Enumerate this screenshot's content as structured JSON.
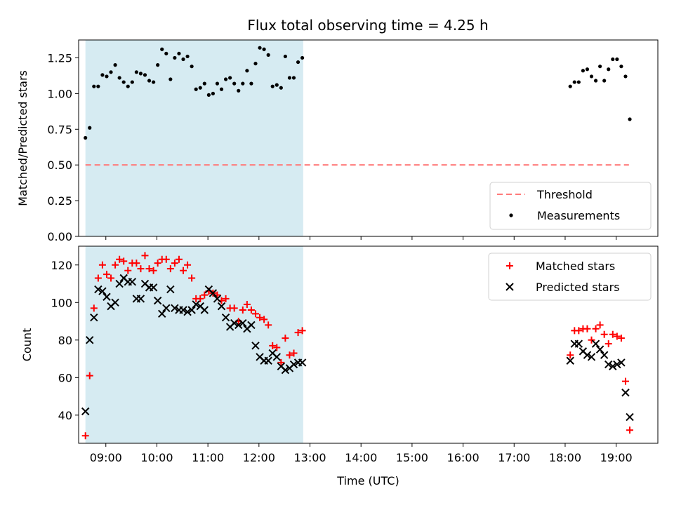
{
  "chart_data": [
    {
      "type": "scatter",
      "title": "Flux total observing time = 4.25 h",
      "ylabel": "Matched/Predicted stars",
      "xlim": [
        "08:28",
        "19:49"
      ],
      "ylim": [
        0,
        1.375
      ],
      "yticks": [
        "0.00",
        "0.25",
        "0.50",
        "0.75",
        "1.00",
        "1.25"
      ],
      "legend_position": "lower-right",
      "shaded_span": {
        "start": "08:36",
        "end": "12:52",
        "color": "#add8e6"
      },
      "threshold": {
        "name": "Threshold",
        "value": 0.5,
        "x": [
          "08:36",
          "19:15"
        ],
        "color": "#ff7a7a",
        "style": "dashed"
      },
      "series": [
        {
          "name": "Measurements",
          "color": "#000000",
          "marker": "dot",
          "points": [
            [
              "08:36",
              0.69
            ],
            [
              "08:41",
              0.76
            ],
            [
              "08:46",
              1.05
            ],
            [
              "08:51",
              1.05
            ],
            [
              "08:56",
              1.13
            ],
            [
              "09:01",
              1.12
            ],
            [
              "09:06",
              1.15
            ],
            [
              "09:11",
              1.2
            ],
            [
              "09:16",
              1.11
            ],
            [
              "09:21",
              1.08
            ],
            [
              "09:26",
              1.05
            ],
            [
              "09:31",
              1.08
            ],
            [
              "09:36",
              1.15
            ],
            [
              "09:41",
              1.14
            ],
            [
              "09:46",
              1.13
            ],
            [
              "09:51",
              1.09
            ],
            [
              "09:56",
              1.08
            ],
            [
              "10:01",
              1.2
            ],
            [
              "10:06",
              1.31
            ],
            [
              "10:11",
              1.28
            ],
            [
              "10:16",
              1.1
            ],
            [
              "10:21",
              1.25
            ],
            [
              "10:26",
              1.28
            ],
            [
              "10:31",
              1.24
            ],
            [
              "10:36",
              1.26
            ],
            [
              "10:41",
              1.19
            ],
            [
              "10:46",
              1.03
            ],
            [
              "10:51",
              1.04
            ],
            [
              "10:56",
              1.07
            ],
            [
              "11:01",
              0.99
            ],
            [
              "11:06",
              1.0
            ],
            [
              "11:11",
              1.07
            ],
            [
              "11:16",
              1.03
            ],
            [
              "11:21",
              1.1
            ],
            [
              "11:26",
              1.11
            ],
            [
              "11:31",
              1.07
            ],
            [
              "11:36",
              1.02
            ],
            [
              "11:41",
              1.07
            ],
            [
              "11:46",
              1.16
            ],
            [
              "11:51",
              1.07
            ],
            [
              "11:56",
              1.21
            ],
            [
              "12:01",
              1.32
            ],
            [
              "12:06",
              1.31
            ],
            [
              "12:11",
              1.27
            ],
            [
              "12:16",
              1.05
            ],
            [
              "12:21",
              1.06
            ],
            [
              "12:26",
              1.04
            ],
            [
              "12:31",
              1.26
            ],
            [
              "12:36",
              1.11
            ],
            [
              "12:41",
              1.11
            ],
            [
              "12:46",
              1.22
            ],
            [
              "12:51",
              1.25
            ],
            [
              "18:06",
              1.05
            ],
            [
              "18:11",
              1.08
            ],
            [
              "18:16",
              1.08
            ],
            [
              "18:21",
              1.16
            ],
            [
              "18:26",
              1.17
            ],
            [
              "18:31",
              1.12
            ],
            [
              "18:36",
              1.09
            ],
            [
              "18:41",
              1.19
            ],
            [
              "18:46",
              1.09
            ],
            [
              "18:51",
              1.17
            ],
            [
              "18:56",
              1.24
            ],
            [
              "19:01",
              1.24
            ],
            [
              "19:06",
              1.19
            ],
            [
              "19:11",
              1.12
            ],
            [
              "19:16",
              0.82
            ]
          ]
        }
      ]
    },
    {
      "type": "scatter",
      "xlabel": "Time (UTC)",
      "ylabel": "Count",
      "xlim": [
        "08:28",
        "19:49"
      ],
      "ylim": [
        25,
        130
      ],
      "yticks": [
        "40",
        "60",
        "80",
        "100",
        "120"
      ],
      "xticks": [
        "09:00",
        "10:00",
        "11:00",
        "12:00",
        "13:00",
        "14:00",
        "15:00",
        "16:00",
        "17:00",
        "18:00",
        "19:00"
      ],
      "legend_position": "top-right",
      "shaded_span": {
        "start": "08:36",
        "end": "12:52",
        "color": "#add8e6"
      },
      "series": [
        {
          "name": "Matched stars",
          "color": "#ff0000",
          "marker": "plus",
          "points": [
            [
              "08:36",
              29
            ],
            [
              "08:41",
              61
            ],
            [
              "08:46",
              97
            ],
            [
              "08:51",
              113
            ],
            [
              "08:56",
              120
            ],
            [
              "09:01",
              115
            ],
            [
              "09:06",
              113
            ],
            [
              "09:11",
              120
            ],
            [
              "09:16",
              123
            ],
            [
              "09:21",
              122
            ],
            [
              "09:26",
              117
            ],
            [
              "09:31",
              121
            ],
            [
              "09:36",
              121
            ],
            [
              "09:41",
              118
            ],
            [
              "09:46",
              125
            ],
            [
              "09:51",
              118
            ],
            [
              "09:56",
              117
            ],
            [
              "10:01",
              121
            ],
            [
              "10:06",
              123
            ],
            [
              "10:11",
              123
            ],
            [
              "10:16",
              118
            ],
            [
              "10:21",
              121
            ],
            [
              "10:26",
              123
            ],
            [
              "10:31",
              117
            ],
            [
              "10:36",
              120
            ],
            [
              "10:41",
              113
            ],
            [
              "10:46",
              102
            ],
            [
              "10:51",
              102
            ],
            [
              "10:56",
              104
            ],
            [
              "11:01",
              106
            ],
            [
              "11:06",
              105
            ],
            [
              "11:11",
              104
            ],
            [
              "11:16",
              101
            ],
            [
              "11:21",
              102
            ],
            [
              "11:26",
              97
            ],
            [
              "11:31",
              97
            ],
            [
              "11:36",
              90
            ],
            [
              "11:41",
              96
            ],
            [
              "11:46",
              99
            ],
            [
              "11:51",
              96
            ],
            [
              "11:56",
              94
            ],
            [
              "12:01",
              92
            ],
            [
              "12:06",
              91
            ],
            [
              "12:11",
              88
            ],
            [
              "12:16",
              77
            ],
            [
              "12:21",
              76
            ],
            [
              "12:26",
              68
            ],
            [
              "12:31",
              81
            ],
            [
              "12:36",
              72
            ],
            [
              "12:41",
              73
            ],
            [
              "12:46",
              84
            ],
            [
              "12:51",
              85
            ],
            [
              "18:06",
              72
            ],
            [
              "18:11",
              85
            ],
            [
              "18:16",
              85
            ],
            [
              "18:21",
              86
            ],
            [
              "18:26",
              86
            ],
            [
              "18:31",
              80
            ],
            [
              "18:36",
              86
            ],
            [
              "18:41",
              88
            ],
            [
              "18:46",
              83
            ],
            [
              "18:51",
              78
            ],
            [
              "18:56",
              83
            ],
            [
              "19:01",
              82
            ],
            [
              "19:06",
              81
            ],
            [
              "19:11",
              58
            ],
            [
              "19:16",
              32
            ]
          ]
        },
        {
          "name": "Predicted stars",
          "color": "#000000",
          "marker": "x",
          "points": [
            [
              "08:36",
              42
            ],
            [
              "08:41",
              80
            ],
            [
              "08:46",
              92
            ],
            [
              "08:51",
              107
            ],
            [
              "08:56",
              106
            ],
            [
              "09:01",
              103
            ],
            [
              "09:06",
              98
            ],
            [
              "09:11",
              100
            ],
            [
              "09:16",
              110
            ],
            [
              "09:21",
              113
            ],
            [
              "09:26",
              111
            ],
            [
              "09:31",
              111
            ],
            [
              "09:36",
              102
            ],
            [
              "09:41",
              102
            ],
            [
              "09:46",
              110
            ],
            [
              "09:51",
              108
            ],
            [
              "09:56",
              108
            ],
            [
              "10:01",
              101
            ],
            [
              "10:06",
              94
            ],
            [
              "10:11",
              97
            ],
            [
              "10:16",
              107
            ],
            [
              "10:21",
              97
            ],
            [
              "10:26",
              96
            ],
            [
              "10:31",
              96
            ],
            [
              "10:36",
              95
            ],
            [
              "10:41",
              96
            ],
            [
              "10:46",
              99
            ],
            [
              "10:51",
              98
            ],
            [
              "10:56",
              96
            ],
            [
              "11:01",
              107
            ],
            [
              "11:06",
              105
            ],
            [
              "11:11",
              102
            ],
            [
              "11:16",
              98
            ],
            [
              "11:21",
              92
            ],
            [
              "11:26",
              87
            ],
            [
              "11:31",
              89
            ],
            [
              "11:36",
              88
            ],
            [
              "11:41",
              89
            ],
            [
              "11:46",
              86
            ],
            [
              "11:51",
              88
            ],
            [
              "11:56",
              77
            ],
            [
              "12:01",
              71
            ],
            [
              "12:06",
              69
            ],
            [
              "12:11",
              69
            ],
            [
              "12:16",
              73
            ],
            [
              "12:21",
              71
            ],
            [
              "12:26",
              66
            ],
            [
              "12:31",
              64
            ],
            [
              "12:36",
              65
            ],
            [
              "12:41",
              67
            ],
            [
              "12:46",
              68
            ],
            [
              "12:51",
              68
            ],
            [
              "18:06",
              69
            ],
            [
              "18:11",
              78
            ],
            [
              "18:16",
              78
            ],
            [
              "18:21",
              74
            ],
            [
              "18:26",
              72
            ],
            [
              "18:31",
              71
            ],
            [
              "18:36",
              78
            ],
            [
              "18:41",
              75
            ],
            [
              "18:46",
              72
            ],
            [
              "18:51",
              67
            ],
            [
              "18:56",
              66
            ],
            [
              "19:01",
              67
            ],
            [
              "19:06",
              68
            ],
            [
              "19:11",
              52
            ],
            [
              "19:16",
              39
            ]
          ]
        }
      ]
    }
  ]
}
